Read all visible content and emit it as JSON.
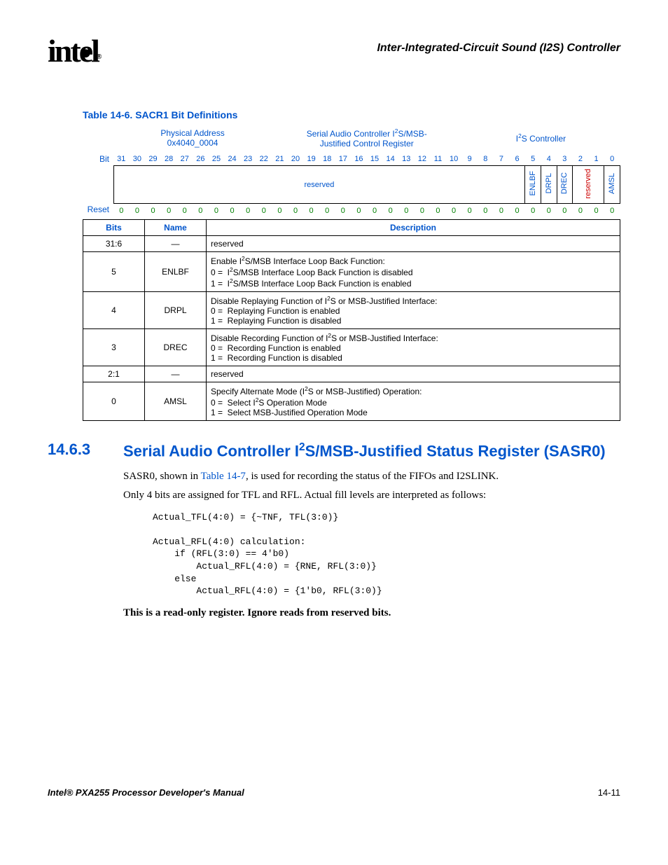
{
  "header": {
    "logo": "intel",
    "chapter": "Inter-Integrated-Circuit Sound (I2S) Controller"
  },
  "table_caption": "Table 14-6. SACR1 Bit Definitions",
  "bitdiag": {
    "phys_addr_label": "Physical Address",
    "phys_addr_value": "0x4040_0004",
    "reg_name_line1": "Serial Audio Controller I",
    "reg_name_sup": "2",
    "reg_name_line1b": "S/MSB-",
    "reg_name_line2": "Justified Control Register",
    "controller_label_pre": "I",
    "controller_label_sup": "2",
    "controller_label_post": "S Controller",
    "bit_label": "Bit",
    "reset_label": "Reset",
    "bit_numbers": [
      "31",
      "30",
      "29",
      "28",
      "27",
      "26",
      "25",
      "24",
      "23",
      "22",
      "21",
      "20",
      "19",
      "18",
      "17",
      "16",
      "15",
      "14",
      "13",
      "12",
      "11",
      "10",
      "9",
      "8",
      "7",
      "6",
      "5",
      "4",
      "3",
      "2",
      "1",
      "0"
    ],
    "reserved_label": "reserved",
    "fields": {
      "b5": "ENLBF",
      "b4": "DRPL",
      "b3": "DREC",
      "b21": "reserved",
      "b0": "AMSL"
    },
    "reset_values": [
      "0",
      "0",
      "0",
      "0",
      "0",
      "0",
      "0",
      "0",
      "0",
      "0",
      "0",
      "0",
      "0",
      "0",
      "0",
      "0",
      "0",
      "0",
      "0",
      "0",
      "0",
      "0",
      "0",
      "0",
      "0",
      "0",
      "0",
      "0",
      "0",
      "0",
      "0",
      "0"
    ],
    "colors": {
      "blue": "#0055cc",
      "green": "#008000"
    }
  },
  "desc_table": {
    "headers": {
      "bits": "Bits",
      "name": "Name",
      "desc": "Description"
    },
    "rows": [
      {
        "bits": "31:6",
        "name": "—",
        "desc_html": "reserved"
      },
      {
        "bits": "5",
        "name": "ENLBF",
        "desc_html": "Enable I<sup class='s2'>2</sup>S/MSB Interface Loop Back Function:<br>0 = &nbsp;I<sup class='s2'>2</sup>S/MSB Interface Loop Back Function is disabled<br>1 = &nbsp;I<sup class='s2'>2</sup>S/MSB Interface Loop Back Function is enabled"
      },
      {
        "bits": "4",
        "name": "DRPL",
        "desc_html": "Disable Replaying Function of I<sup class='s2'>2</sup>S or MSB-Justified Interface:<br>0 = &nbsp;Replaying Function is enabled<br>1 = &nbsp;Replaying Function is disabled"
      },
      {
        "bits": "3",
        "name": "DREC",
        "desc_html": "Disable Recording Function of I<sup class='s2'>2</sup>S or MSB-Justified Interface:<br>0 = &nbsp;Recording Function is enabled<br>1 = &nbsp;Recording Function is disabled"
      },
      {
        "bits": "2:1",
        "name": "—",
        "desc_html": "reserved"
      },
      {
        "bits": "0",
        "name": "AMSL",
        "desc_html": "Specify Alternate Mode (I<sup class='s2'>2</sup>S or MSB-Justified) Operation:<br>0 = &nbsp;Select I<sup class='s2'>2</sup>S Operation Mode<br>1 = &nbsp;Select MSB-Justified Operation Mode"
      }
    ]
  },
  "section": {
    "num": "14.6.3",
    "title_html": "Serial Audio Controller I<sup class='s2'>2</sup>S/MSB-Justified Status Register (SASR0)"
  },
  "body": {
    "p1_pre": "SASR0, shown in ",
    "p1_link": "Table 14-7",
    "p1_post": ", is used for recording the status of the FIFOs and I2SLINK.",
    "p2": "Only 4 bits are assigned for TFL and RFL. Actual fill levels are interpreted as follows:",
    "code": "Actual_TFL(4:0) = {~TNF, TFL(3:0)}\n\nActual_RFL(4:0) calculation:\n    if (RFL(3:0) == 4'b0)\n        Actual_RFL(4:0) = {RNE, RFL(3:0)}\n    else\n        Actual_RFL(4:0) = {1'b0, RFL(3:0)}",
    "p3": "This is a read-only register. Ignore reads from reserved bits."
  },
  "footer": {
    "left": "Intel® PXA255 Processor Developer's Manual",
    "right": "14-11"
  }
}
